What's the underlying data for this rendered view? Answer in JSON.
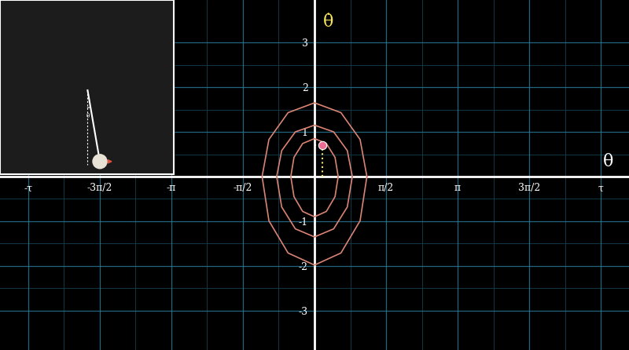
{
  "chart_data": {
    "type": "line",
    "xlabel": "θ",
    "ylabel": "θ̇",
    "annotations": [
      "θ"
    ],
    "xlim": [
      -6.9,
      6.9
    ],
    "ylim": [
      -3.88,
      3.95
    ],
    "xticks": [
      {
        "value": -6.2832,
        "label": "-τ"
      },
      {
        "value": -4.7124,
        "label": "-3π/2"
      },
      {
        "value": -3.1416,
        "label": "-π"
      },
      {
        "value": -1.5708,
        "label": "-π/2"
      },
      {
        "value": 1.5708,
        "label": "π/2"
      },
      {
        "value": 3.1416,
        "label": "π"
      },
      {
        "value": 4.7124,
        "label": "3π/2"
      },
      {
        "value": 6.2832,
        "label": "τ"
      }
    ],
    "yticks": [
      -3,
      -2,
      -1,
      1,
      2,
      3
    ],
    "grid": true,
    "series": [
      {
        "color": "#d98474",
        "x": [
          1.15,
          1.0,
          0.58,
          0,
          -0.58,
          -1.0,
          -1.15,
          -1.0,
          -0.58,
          0,
          0.58,
          1.0,
          1.15
        ],
        "values": [
          0,
          0.83,
          1.43,
          1.65,
          1.43,
          0.83,
          0,
          -0.99,
          -1.71,
          -1.98,
          -1.71,
          -0.99,
          0
        ]
      },
      {
        "color": "#d98474",
        "x": [
          0.83,
          0.72,
          0.42,
          0,
          -0.42,
          -0.72,
          -0.83,
          -0.72,
          -0.42,
          0,
          0.42,
          0.72,
          0.83
        ],
        "values": [
          0,
          0.58,
          1.0,
          1.15,
          1.0,
          0.58,
          0,
          -0.68,
          -1.17,
          -1.35,
          -1.17,
          -0.68,
          0
        ]
      },
      {
        "color": "#d98474",
        "x": [
          0.52,
          0.45,
          0.26,
          0,
          -0.26,
          -0.45,
          -0.52,
          -0.45,
          -0.26,
          0,
          0.26,
          0.45,
          0.52
        ],
        "values": [
          0,
          0.43,
          0.74,
          0.85,
          0.74,
          0.43,
          0,
          -0.45,
          -0.78,
          -0.9,
          -0.78,
          -0.45,
          0
        ]
      },
      {
        "type": "scatter",
        "color": "#ec6d93",
        "x": [
          0.17
        ],
        "values": [
          0.7
        ]
      }
    ]
  }
}
